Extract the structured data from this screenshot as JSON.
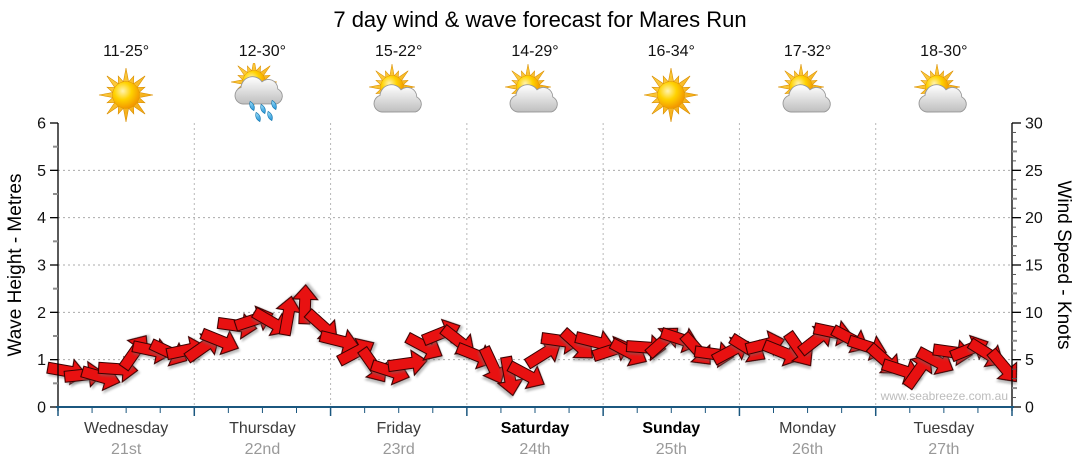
{
  "title": "7 day wind & wave forecast for Mares Run",
  "watermark": "www.seabreeze.com.au",
  "axes": {
    "left_label": "Wave Height - Metres",
    "right_label": "Wind Speed - Knots",
    "left_ticks": [
      0,
      1,
      2,
      3,
      4,
      5,
      6
    ],
    "right_ticks": [
      0,
      5,
      10,
      15,
      20,
      25,
      30
    ]
  },
  "days": [
    {
      "name": "Wednesday",
      "date": "21st",
      "temp": "11-25°",
      "icon": "sunny",
      "weekend": false
    },
    {
      "name": "Thursday",
      "date": "22nd",
      "temp": "12-30°",
      "icon": "showers",
      "weekend": false
    },
    {
      "name": "Friday",
      "date": "23rd",
      "temp": "15-22°",
      "icon": "partly-cloudy",
      "weekend": false
    },
    {
      "name": "Saturday",
      "date": "24th",
      "temp": "14-29°",
      "icon": "partly-cloudy",
      "weekend": true
    },
    {
      "name": "Sunday",
      "date": "25th",
      "temp": "16-34°",
      "icon": "sunny",
      "weekend": true
    },
    {
      "name": "Monday",
      "date": "26th",
      "temp": "17-32°",
      "icon": "partly-cloudy",
      "weekend": false
    },
    {
      "name": "Tuesday",
      "date": "27th",
      "temp": "18-30°",
      "icon": "partly-cloudy",
      "weekend": false
    }
  ],
  "chart_data": {
    "type": "scatter",
    "subtype": "wind-direction-arrows",
    "title": "7 day wind & wave forecast for Mares Run",
    "x": {
      "categories": [
        "Wednesday 21st",
        "Thursday 22nd",
        "Friday 23rd",
        "Saturday 24th",
        "Sunday 25th",
        "Monday 26th",
        "Tuesday 27th"
      ],
      "points_per_day": 8,
      "interval_hours": 3
    },
    "y_axis_left": {
      "label": "Wave Height - Metres",
      "range": [
        0,
        6
      ],
      "major_tick": 1,
      "minor_tick": 0.5
    },
    "y_axis_right": {
      "label": "Wind Speed - Knots",
      "range": [
        0,
        30
      ],
      "major_tick": 5,
      "minor_tick": 1
    },
    "grid": true,
    "legend": false,
    "series": [
      {
        "name": "Wind speed (knots, estimated from arrow positions)",
        "values": [
          3.8,
          3.4,
          3.2,
          4.0,
          5.8,
          6.0,
          5.8,
          6.0,
          6.3,
          7.0,
          8.6,
          9.2,
          9.0,
          9.6,
          10.8,
          8.6,
          7.0,
          5.8,
          4.4,
          3.8,
          4.6,
          6.4,
          7.8,
          7.0,
          5.5,
          4.4,
          3.3,
          3.4,
          5.6,
          7.0,
          6.6,
          6.9,
          6.0,
          5.8,
          6.3,
          6.9,
          7.2,
          6.1,
          5.6,
          5.9,
          6.2,
          6.6,
          5.8,
          6.1,
          7.1,
          7.9,
          7.2,
          6.4,
          5.0,
          3.9,
          3.8,
          4.9,
          5.8,
          6.1,
          5.7,
          4.3
        ]
      },
      {
        "name": "Wind direction (screen degrees, 0 = right, estimated)",
        "values": [
          10,
          -6,
          16,
          4,
          -55,
          12,
          25,
          -12,
          -35,
          22,
          8,
          -18,
          30,
          -80,
          -88,
          42,
          14,
          -28,
          55,
          18,
          -8,
          28,
          -22,
          38,
          22,
          65,
          80,
          28,
          -32,
          8,
          42,
          14,
          -18,
          28,
          4,
          -42,
          18,
          48,
          8,
          -28,
          32,
          -14,
          22,
          55,
          -38,
          12,
          28,
          18,
          42,
          18,
          -55,
          28,
          8,
          -22,
          32,
          50
        ]
      }
    ]
  },
  "colors": {
    "arrow_fill": "#e81111",
    "arrow_outline": "#3a0000",
    "bottom_axis": "#1b577f",
    "grid": "#ababab",
    "day_grid": "#b8b8b8",
    "date_text": "#999999",
    "watermark_text": "#bcbcbc"
  }
}
